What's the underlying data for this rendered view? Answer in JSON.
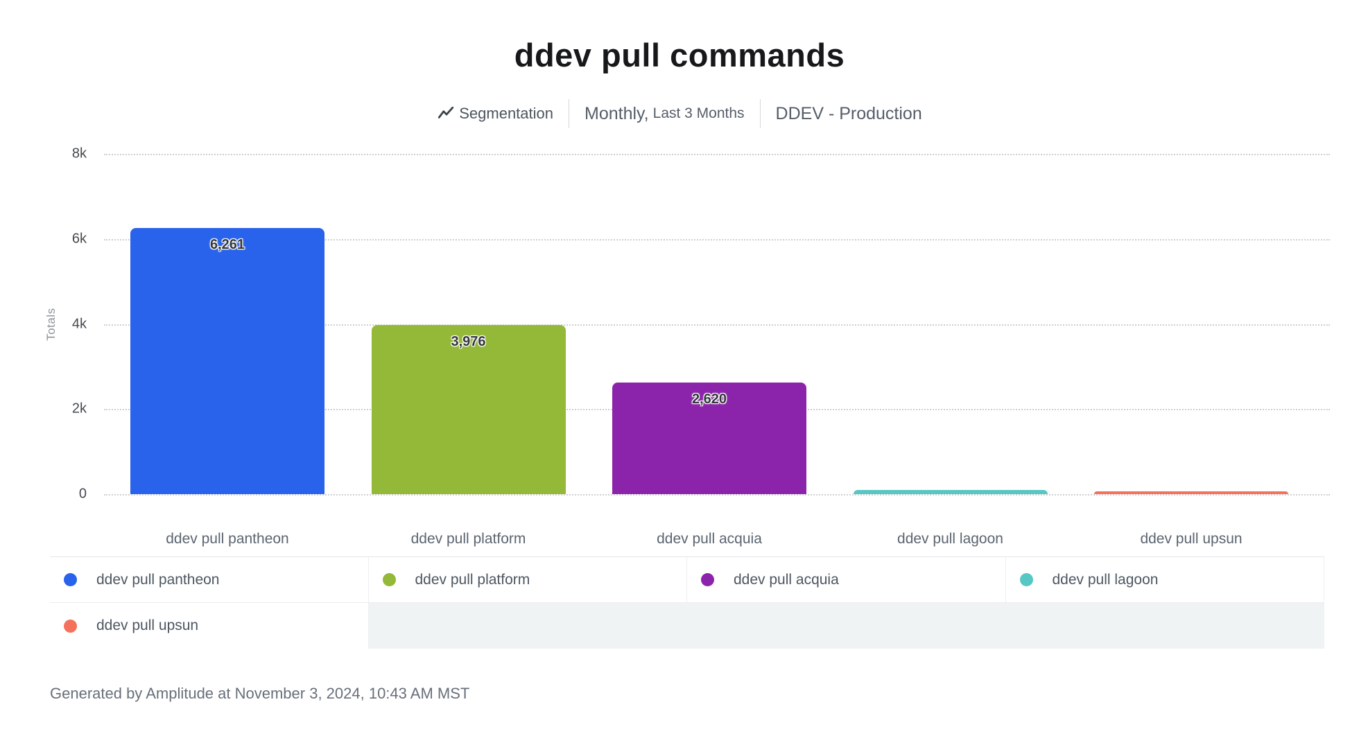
{
  "title": "ddev pull commands",
  "subtitle": {
    "segmentation_label": "Segmentation",
    "date_range_primary": "Monthly,",
    "date_range_secondary": "Last 3 Months",
    "project": "DDEV - Production"
  },
  "chart_data": {
    "type": "bar",
    "title": "ddev pull commands",
    "xlabel": "",
    "ylabel": "Totals",
    "ylim": [
      0,
      8000
    ],
    "yticks": [
      {
        "label": "8k",
        "value": 8000
      },
      {
        "label": "6k",
        "value": 6000
      },
      {
        "label": "4k",
        "value": 4000
      },
      {
        "label": "2k",
        "value": 2000
      },
      {
        "label": "0",
        "value": 0
      }
    ],
    "grid": "dotted-horizontal",
    "legend_position": "bottom",
    "categories": [
      "ddev pull pantheon",
      "ddev pull platform",
      "ddev pull acquia",
      "ddev pull lagoon",
      "ddev pull upsun"
    ],
    "values": [
      6261,
      3976,
      2620,
      100,
      70
    ],
    "data_labels": [
      "6,261",
      "3,976",
      "2,620",
      "",
      ""
    ],
    "colors": [
      "#2962EB",
      "#94B837",
      "#8C24AB",
      "#57C7C3",
      "#F4715C"
    ]
  },
  "legend": {
    "items": [
      {
        "label": "ddev pull pantheon",
        "color": "#2962EB"
      },
      {
        "label": "ddev pull platform",
        "color": "#94B837"
      },
      {
        "label": "ddev pull acquia",
        "color": "#8C24AB"
      },
      {
        "label": "ddev pull lagoon",
        "color": "#57C7C3"
      },
      {
        "label": "ddev pull upsun",
        "color": "#F4715C"
      }
    ]
  },
  "footer": "Generated by Amplitude at November 3, 2024, 10:43 AM MST"
}
